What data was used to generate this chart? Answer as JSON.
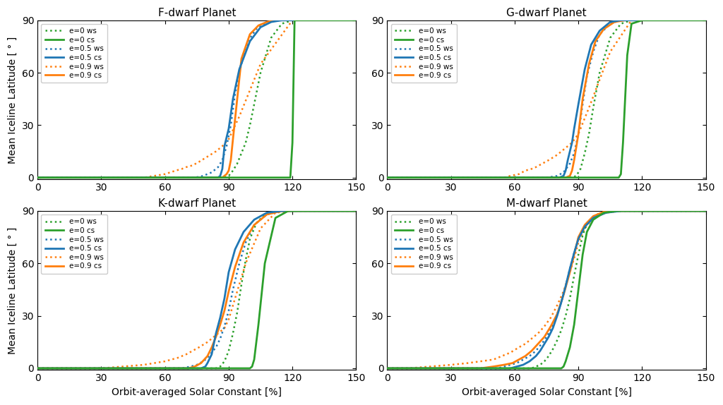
{
  "titles": [
    "F-dwarf Planet",
    "G-dwarf Planet",
    "K-dwarf Planet",
    "M-dwarf Planet"
  ],
  "ylabel": "Mean Iceline Latitude [ ° ]",
  "xlabel": "Orbit-averaged Solar Constant [%]",
  "xlim": [
    0,
    150
  ],
  "ylim": [
    -1,
    90
  ],
  "xticks": [
    0,
    30,
    60,
    90,
    120,
    150
  ],
  "yticks": [
    0,
    30,
    60,
    90
  ],
  "color_green": "#2ca02c",
  "color_blue": "#1f77b4",
  "color_orange": "#ff7f0e",
  "legend_entries": [
    {
      "label": "e=0 ws",
      "color": "#2ca02c",
      "ls": "dotted"
    },
    {
      "label": "e=0 cs",
      "color": "#2ca02c",
      "ls": "solid"
    },
    {
      "label": "e=0.5 ws",
      "color": "#1f77b4",
      "ls": "dotted"
    },
    {
      "label": "e=0.5 cs",
      "color": "#1f77b4",
      "ls": "solid"
    },
    {
      "label": "e=0.9 ws",
      "color": "#ff7f0e",
      "ls": "dotted"
    },
    {
      "label": "e=0.9 cs",
      "color": "#ff7f0e",
      "ls": "solid"
    }
  ],
  "panels": {
    "F": {
      "e0_ws": {
        "x": [
          0,
          86,
          88,
          90,
          92,
          94,
          96,
          98,
          100,
          105,
          110,
          115,
          120,
          150
        ],
        "y": [
          0,
          0,
          0,
          1,
          4,
          8,
          14,
          20,
          30,
          60,
          80,
          88,
          90,
          90
        ]
      },
      "e0_cs": {
        "x": [
          0,
          118,
          119,
          120,
          121,
          150
        ],
        "y": [
          0,
          0,
          0,
          20,
          90,
          90
        ]
      },
      "e05_ws": {
        "x": [
          0,
          74,
          78,
          82,
          85,
          87,
          89,
          91,
          93,
          96,
          99,
          103,
          108,
          115,
          120,
          150
        ],
        "y": [
          0,
          0,
          1,
          3,
          6,
          10,
          18,
          30,
          48,
          65,
          78,
          85,
          89,
          90,
          90,
          90
        ]
      },
      "e05_cs": {
        "x": [
          0,
          80,
          83,
          85,
          86,
          87,
          88,
          90,
          92,
          95,
          100,
          105,
          110,
          115,
          120,
          150
        ],
        "y": [
          0,
          0,
          0,
          0,
          1,
          5,
          18,
          28,
          45,
          62,
          78,
          86,
          89,
          90,
          90,
          90
        ]
      },
      "e09_ws": {
        "x": [
          0,
          50,
          55,
          60,
          65,
          68,
          70,
          73,
          76,
          80,
          84,
          87,
          90,
          95,
          105,
          120,
          150
        ],
        "y": [
          0,
          0,
          1,
          2,
          4,
          5,
          6,
          7,
          9,
          12,
          15,
          18,
          22,
          35,
          65,
          90,
          90
        ]
      },
      "e09_cs": {
        "x": [
          0,
          80,
          83,
          85,
          87,
          88,
          89,
          90,
          91,
          92,
          94,
          96,
          100,
          104,
          108,
          112,
          115,
          120,
          150
        ],
        "y": [
          0,
          0,
          0,
          0,
          0,
          1,
          2,
          4,
          10,
          22,
          45,
          68,
          82,
          87,
          89,
          90,
          90,
          90,
          90
        ]
      }
    },
    "G": {
      "e0_ws": {
        "x": [
          0,
          87,
          89,
          91,
          93,
          95,
          97,
          100,
          105,
          110,
          115,
          120,
          150
        ],
        "y": [
          0,
          0,
          1,
          5,
          14,
          25,
          40,
          60,
          80,
          88,
          90,
          90,
          90
        ]
      },
      "e0_cs": {
        "x": [
          0,
          108,
          109,
          110,
          111,
          113,
          115,
          120,
          150
        ],
        "y": [
          0,
          0,
          0,
          2,
          20,
          70,
          88,
          90,
          90
        ]
      },
      "e05_ws": {
        "x": [
          0,
          75,
          80,
          83,
          86,
          88,
          90,
          92,
          94,
          97,
          100,
          105,
          110,
          115,
          120,
          150
        ],
        "y": [
          0,
          0,
          1,
          3,
          8,
          14,
          25,
          42,
          58,
          72,
          82,
          88,
          90,
          90,
          90,
          90
        ]
      },
      "e05_cs": {
        "x": [
          0,
          78,
          81,
          83,
          84,
          85,
          87,
          88,
          90,
          93,
          96,
          100,
          105,
          110,
          115,
          120,
          150
        ],
        "y": [
          0,
          0,
          0,
          1,
          4,
          10,
          20,
          28,
          42,
          62,
          76,
          84,
          89,
          90,
          90,
          90,
          90
        ]
      },
      "e09_ws": {
        "x": [
          0,
          55,
          58,
          62,
          65,
          68,
          70,
          73,
          76,
          80,
          83,
          87,
          90,
          95,
          105,
          115,
          120,
          150
        ],
        "y": [
          0,
          0,
          1,
          2,
          4,
          5,
          6,
          8,
          10,
          13,
          16,
          20,
          25,
          40,
          72,
          90,
          90,
          90
        ]
      },
      "e09_cs": {
        "x": [
          0,
          82,
          84,
          86,
          87,
          88,
          90,
          92,
          95,
          98,
          102,
          107,
          112,
          117,
          120,
          150
        ],
        "y": [
          0,
          0,
          0,
          1,
          4,
          10,
          25,
          45,
          65,
          78,
          85,
          89,
          90,
          90,
          90,
          90
        ]
      }
    },
    "K": {
      "e0_ws": {
        "x": [
          0,
          84,
          86,
          88,
          90,
          92,
          94,
          96,
          98,
          100,
          103,
          107,
          112,
          120,
          150
        ],
        "y": [
          0,
          0,
          1,
          4,
          10,
          20,
          32,
          48,
          62,
          74,
          83,
          88,
          90,
          90,
          90
        ]
      },
      "e0_cs": {
        "x": [
          0,
          99,
          100,
          101,
          102,
          104,
          107,
          112,
          118,
          120,
          150
        ],
        "y": [
          0,
          0,
          0,
          1,
          5,
          25,
          60,
          86,
          90,
          90,
          90
        ]
      },
      "e05_ws": {
        "x": [
          0,
          68,
          72,
          75,
          78,
          80,
          82,
          84,
          86,
          88,
          90,
          92,
          95,
          98,
          102,
          108,
          115,
          120,
          150
        ],
        "y": [
          0,
          0,
          1,
          2,
          4,
          6,
          9,
          12,
          17,
          24,
          33,
          45,
          60,
          72,
          82,
          88,
          90,
          90,
          90
        ]
      },
      "e05_cs": {
        "x": [
          0,
          74,
          77,
          79,
          80,
          82,
          83,
          84,
          86,
          88,
          90,
          93,
          97,
          102,
          108,
          115,
          120,
          150
        ],
        "y": [
          0,
          0,
          0,
          1,
          3,
          8,
          14,
          20,
          29,
          40,
          55,
          68,
          78,
          85,
          89,
          90,
          90,
          90
        ]
      },
      "e09_ws": {
        "x": [
          0,
          30,
          40,
          50,
          55,
          60,
          63,
          66,
          70,
          73,
          76,
          80,
          83,
          86,
          88,
          90,
          93,
          98,
          105,
          112,
          120,
          150
        ],
        "y": [
          0,
          0,
          1,
          2,
          3,
          4,
          5,
          6,
          8,
          10,
          12,
          15,
          18,
          21,
          23,
          28,
          40,
          60,
          80,
          89,
          90,
          90
        ]
      },
      "e09_cs": {
        "x": [
          0,
          60,
          65,
          68,
          71,
          74,
          77,
          80,
          82,
          84,
          86,
          88,
          90,
          93,
          97,
          102,
          108,
          115,
          120,
          150
        ],
        "y": [
          0,
          0,
          0,
          0,
          0,
          1,
          3,
          7,
          12,
          18,
          25,
          33,
          44,
          58,
          72,
          82,
          88,
          90,
          90,
          90
        ]
      }
    },
    "M": {
      "e0_ws": {
        "x": [
          0,
          68,
          70,
          72,
          74,
          76,
          78,
          80,
          82,
          84,
          86,
          88,
          90,
          92,
          94,
          100,
          110,
          120,
          150
        ],
        "y": [
          0,
          0,
          1,
          2,
          4,
          7,
          11,
          16,
          22,
          30,
          40,
          53,
          65,
          76,
          83,
          89,
          90,
          90,
          90
        ]
      },
      "e0_cs": {
        "x": [
          0,
          80,
          82,
          83,
          84,
          86,
          88,
          90,
          92,
          94,
          97,
          102,
          108,
          115,
          120,
          150
        ],
        "y": [
          0,
          0,
          0,
          1,
          4,
          12,
          25,
          45,
          65,
          78,
          85,
          89,
          90,
          90,
          90,
          90
        ]
      },
      "e05_ws": {
        "x": [
          0,
          52,
          55,
          58,
          61,
          64,
          67,
          70,
          72,
          74,
          76,
          78,
          80,
          82,
          84,
          86,
          88,
          90,
          93,
          97,
          103,
          110,
          120,
          150
        ],
        "y": [
          0,
          0,
          1,
          2,
          3,
          5,
          7,
          10,
          13,
          16,
          20,
          25,
          31,
          38,
          47,
          57,
          66,
          74,
          81,
          86,
          89,
          90,
          90,
          90
        ]
      },
      "e05_cs": {
        "x": [
          0,
          58,
          61,
          64,
          67,
          70,
          72,
          74,
          76,
          78,
          80,
          82,
          84,
          86,
          88,
          90,
          93,
          97,
          103,
          110,
          120,
          150
        ],
        "y": [
          0,
          0,
          1,
          2,
          4,
          7,
          10,
          14,
          18,
          23,
          30,
          38,
          47,
          57,
          66,
          74,
          81,
          86,
          89,
          90,
          90,
          90
        ]
      },
      "e09_ws": {
        "x": [
          0,
          10,
          20,
          30,
          38,
          44,
          50,
          54,
          58,
          62,
          65,
          68,
          71,
          74,
          77,
          80,
          83,
          86,
          88,
          90,
          93,
          97,
          103,
          110,
          120,
          150
        ],
        "y": [
          0,
          0,
          1,
          2,
          3,
          4,
          5,
          7,
          9,
          12,
          14,
          17,
          20,
          24,
          29,
          36,
          44,
          55,
          63,
          72,
          80,
          86,
          89,
          90,
          90,
          90
        ]
      },
      "e09_cs": {
        "x": [
          0,
          30,
          38,
          44,
          50,
          55,
          59,
          62,
          65,
          68,
          71,
          74,
          77,
          80,
          83,
          86,
          88,
          90,
          93,
          97,
          103,
          110,
          120,
          150
        ],
        "y": [
          0,
          0,
          0,
          0,
          1,
          2,
          3,
          5,
          7,
          10,
          14,
          18,
          24,
          31,
          42,
          55,
          65,
          75,
          82,
          87,
          90,
          90,
          90,
          90
        ]
      }
    }
  }
}
